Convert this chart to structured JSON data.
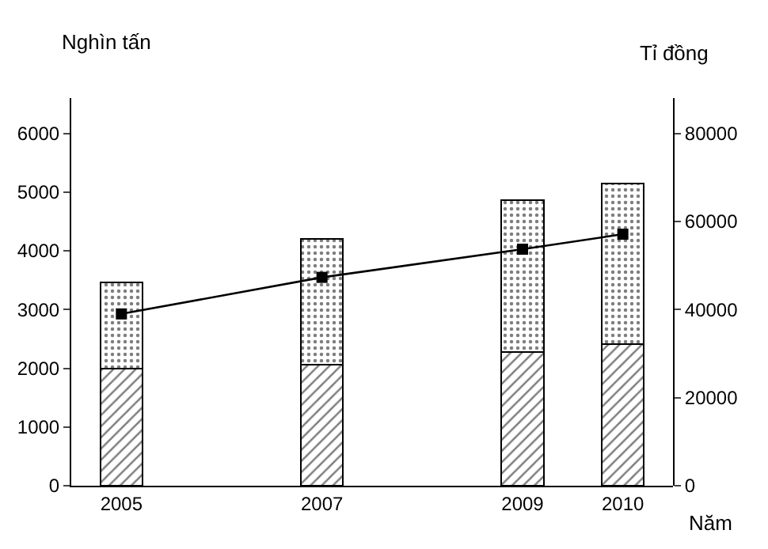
{
  "chart_data": {
    "type": "bar",
    "stacked": true,
    "xlabel": "Năm",
    "ylabel": "Nghìn tấn",
    "y2label": "Tỉ đồng",
    "x": [
      2005,
      2007,
      2009,
      2010
    ],
    "series": [
      {
        "color": "#000000",
        "values": [
          2000,
          2060,
          2270,
          2410
        ]
      },
      {
        "color": "#000000",
        "values": [
          1460,
          2140,
          2590,
          2730
        ]
      },
      {
        "type": "line",
        "axis": "y2",
        "color": "#000000",
        "marker": "square",
        "values": [
          39000,
          47300,
          53700,
          57100
        ]
      }
    ],
    "xlim": [
      2004.5,
      2010.5
    ],
    "xticks": [
      2005,
      2007,
      2009,
      2010
    ],
    "ylim": [
      0,
      6600
    ],
    "yticks": [
      0,
      1000,
      2000,
      3000,
      4000,
      5000,
      6000
    ],
    "y2lim": [
      0,
      88000
    ],
    "y2ticks": [
      0,
      20000,
      40000,
      60000,
      80000
    ]
  }
}
